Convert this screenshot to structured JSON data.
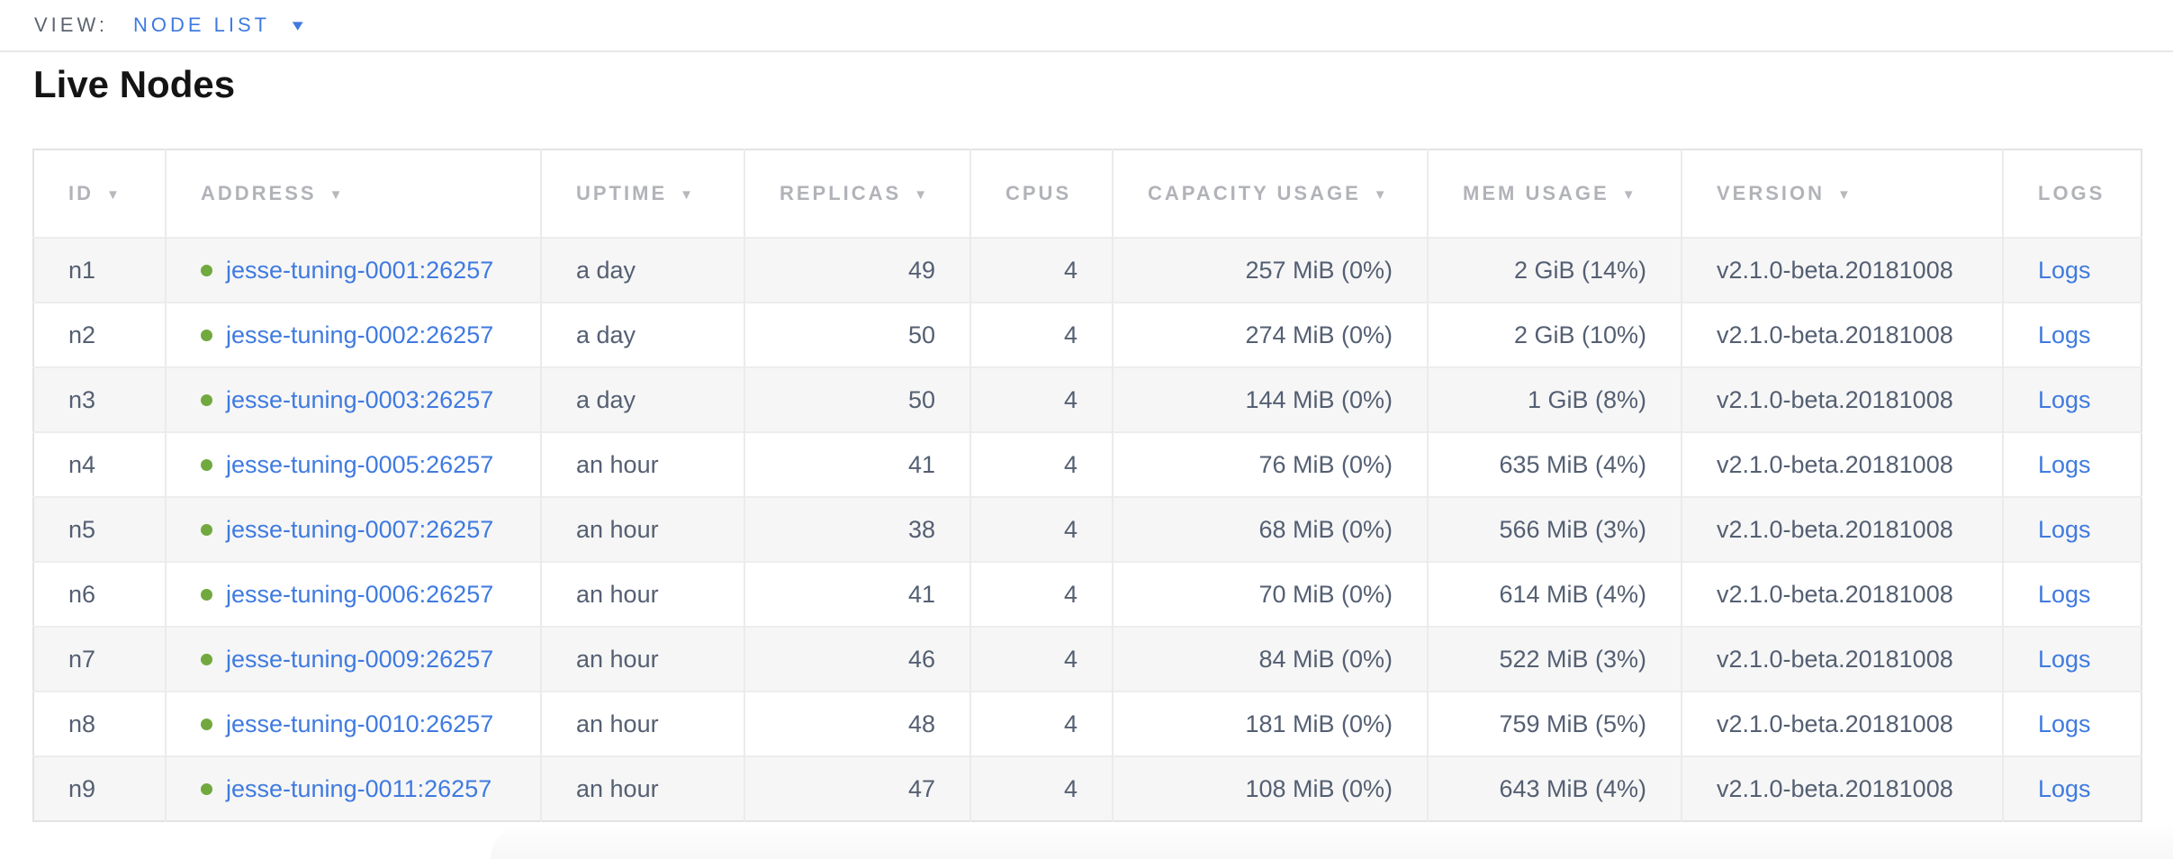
{
  "view_selector": {
    "label": "VIEW:",
    "value": "NODE LIST",
    "caret_icon": "▾"
  },
  "page": {
    "title": "Live Nodes"
  },
  "table": {
    "sort_indicator": "▼",
    "columns": [
      {
        "key": "id",
        "label": "ID",
        "sortable": true,
        "align": "left"
      },
      {
        "key": "address",
        "label": "ADDRESS",
        "sortable": true,
        "align": "left"
      },
      {
        "key": "uptime",
        "label": "UPTIME",
        "sortable": true,
        "align": "left"
      },
      {
        "key": "replicas",
        "label": "REPLICAS",
        "sortable": true,
        "align": "right"
      },
      {
        "key": "cpus",
        "label": "CPUS",
        "sortable": false,
        "align": "right"
      },
      {
        "key": "capacity",
        "label": "CAPACITY USAGE",
        "sortable": true,
        "align": "right"
      },
      {
        "key": "mem",
        "label": "MEM USAGE",
        "sortable": true,
        "align": "right"
      },
      {
        "key": "version",
        "label": "VERSION",
        "sortable": true,
        "align": "left"
      },
      {
        "key": "logs",
        "label": "LOGS",
        "sortable": false,
        "align": "left"
      }
    ],
    "rows": [
      {
        "id": "n1",
        "status": "live",
        "address": "jesse-tuning-0001:26257",
        "uptime": "a day",
        "replicas": "49",
        "cpus": "4",
        "capacity": "257 MiB (0%)",
        "mem": "2 GiB (14%)",
        "version": "v2.1.0-beta.20181008",
        "logs": "Logs"
      },
      {
        "id": "n2",
        "status": "live",
        "address": "jesse-tuning-0002:26257",
        "uptime": "a day",
        "replicas": "50",
        "cpus": "4",
        "capacity": "274 MiB (0%)",
        "mem": "2 GiB (10%)",
        "version": "v2.1.0-beta.20181008",
        "logs": "Logs"
      },
      {
        "id": "n3",
        "status": "live",
        "address": "jesse-tuning-0003:26257",
        "uptime": "a day",
        "replicas": "50",
        "cpus": "4",
        "capacity": "144 MiB (0%)",
        "mem": "1 GiB (8%)",
        "version": "v2.1.0-beta.20181008",
        "logs": "Logs"
      },
      {
        "id": "n4",
        "status": "live",
        "address": "jesse-tuning-0005:26257",
        "uptime": "an hour",
        "replicas": "41",
        "cpus": "4",
        "capacity": "76 MiB (0%)",
        "mem": "635 MiB (4%)",
        "version": "v2.1.0-beta.20181008",
        "logs": "Logs"
      },
      {
        "id": "n5",
        "status": "live",
        "address": "jesse-tuning-0007:26257",
        "uptime": "an hour",
        "replicas": "38",
        "cpus": "4",
        "capacity": "68 MiB (0%)",
        "mem": "566 MiB (3%)",
        "version": "v2.1.0-beta.20181008",
        "logs": "Logs"
      },
      {
        "id": "n6",
        "status": "live",
        "address": "jesse-tuning-0006:26257",
        "uptime": "an hour",
        "replicas": "41",
        "cpus": "4",
        "capacity": "70 MiB (0%)",
        "mem": "614 MiB (4%)",
        "version": "v2.1.0-beta.20181008",
        "logs": "Logs"
      },
      {
        "id": "n7",
        "status": "live",
        "address": "jesse-tuning-0009:26257",
        "uptime": "an hour",
        "replicas": "46",
        "cpus": "4",
        "capacity": "84 MiB (0%)",
        "mem": "522 MiB (3%)",
        "version": "v2.1.0-beta.20181008",
        "logs": "Logs"
      },
      {
        "id": "n8",
        "status": "live",
        "address": "jesse-tuning-0010:26257",
        "uptime": "an hour",
        "replicas": "48",
        "cpus": "4",
        "capacity": "181 MiB (0%)",
        "mem": "759 MiB (5%)",
        "version": "v2.1.0-beta.20181008",
        "logs": "Logs"
      },
      {
        "id": "n9",
        "status": "live",
        "address": "jesse-tuning-0011:26257",
        "uptime": "an hour",
        "replicas": "47",
        "cpus": "4",
        "capacity": "108 MiB (0%)",
        "mem": "643 MiB (4%)",
        "version": "v2.1.0-beta.20181008",
        "logs": "Logs"
      }
    ]
  },
  "colors": {
    "accent_blue": "#3f7ae0",
    "live_dot_green": "#71a93f",
    "header_gray": "#b1b3b8",
    "cell_text": "#545f72"
  }
}
